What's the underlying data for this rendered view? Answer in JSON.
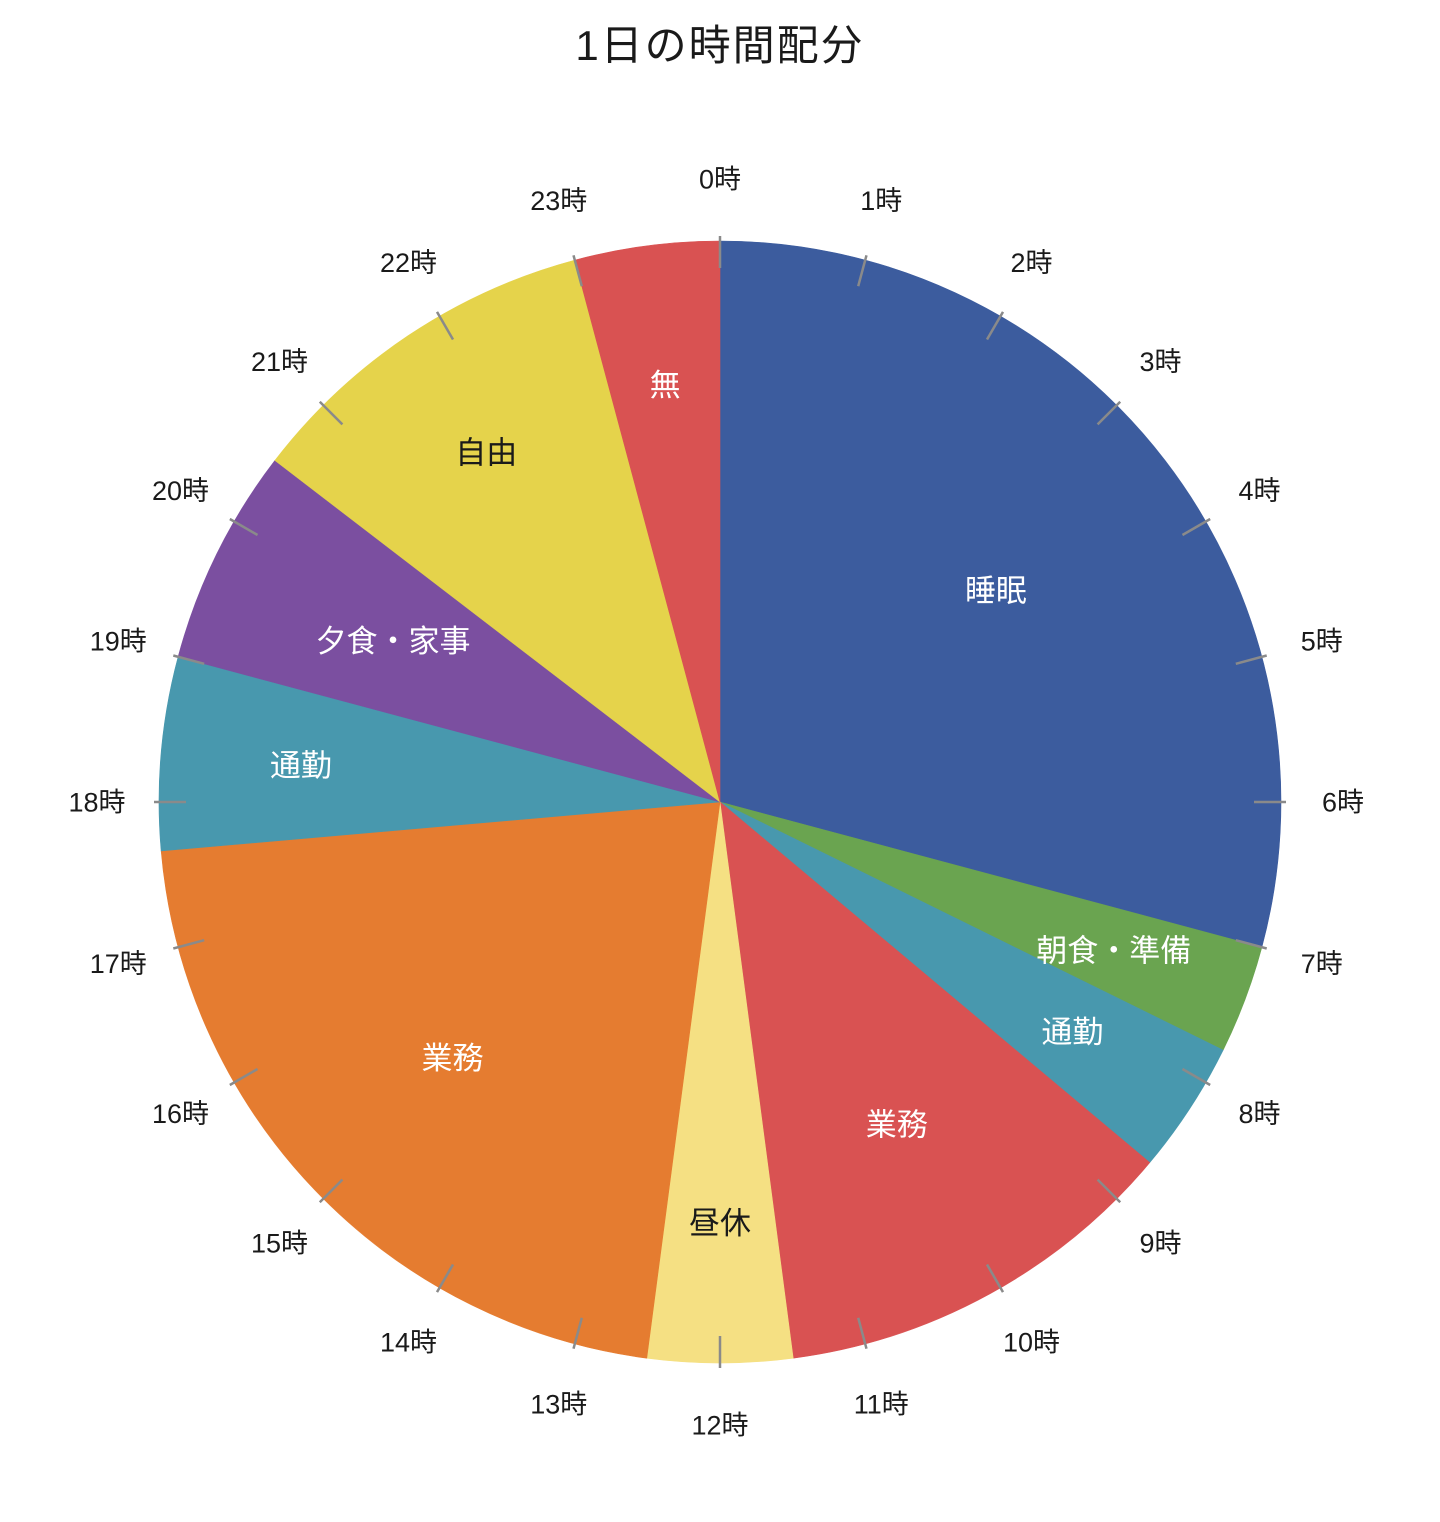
{
  "page": {
    "background": "#FFFFFF"
  },
  "chart_data": {
    "type": "pie",
    "title": "1日の時間配分",
    "value_unit": "hours",
    "total_hours": 24,
    "start_angle": "top",
    "clockwise": true,
    "legend": "none",
    "tick_color": "#8A8A8A",
    "slices": [
      {
        "label": "睡眠",
        "hours": 7.0,
        "color": "#3C5C9E",
        "text_color": "#FFFFFF",
        "label_r": 0.62
      },
      {
        "label": "朝食・準備",
        "hours": 0.75,
        "color": "#6AA450",
        "text_color": "#FFFFFF",
        "label_r": 0.75
      },
      {
        "label": "通勤",
        "hours": 0.9167,
        "color": "#4898AE",
        "text_color": "#FFFFFF",
        "label_r": 0.75
      },
      {
        "label": "業務",
        "hours": 2.8333,
        "color": "#D95252",
        "text_color": "#FFFFFF",
        "label_r": 0.655
      },
      {
        "label": "昼休",
        "hours": 1.0,
        "color": "#F5E083",
        "text_color": "#1A1A1A",
        "label_r": 0.75
      },
      {
        "label": "業務",
        "hours": 5.1667,
        "color": "#E57C30",
        "text_color": "#FFFFFF",
        "label_r": 0.66
      },
      {
        "label": "通勤",
        "hours": 1.3333,
        "color": "#4898AE",
        "text_color": "#FFFFFF",
        "label_r": 0.75
      },
      {
        "label": "夕食・家事",
        "hours": 1.5,
        "color": "#7B4FA0",
        "text_color": "#FFFFFF",
        "label_r": 0.65
      },
      {
        "label": "自由",
        "hours": 2.5,
        "color": "#E5D34B",
        "text_color": "#1A1A1A",
        "label_r": 0.75
      },
      {
        "label": "無",
        "hours": 1.0,
        "color": "#D95252",
        "text_color": "#FFFFFF",
        "label_r": 0.75
      }
    ],
    "hour_labels": [
      "0時",
      "1時",
      "2時",
      "3時",
      "4時",
      "5時",
      "6時",
      "7時",
      "8時",
      "9時",
      "10時",
      "11時",
      "12時",
      "13時",
      "14時",
      "15時",
      "16時",
      "17時",
      "18時",
      "19時",
      "20時",
      "21時",
      "22時",
      "23時"
    ]
  }
}
